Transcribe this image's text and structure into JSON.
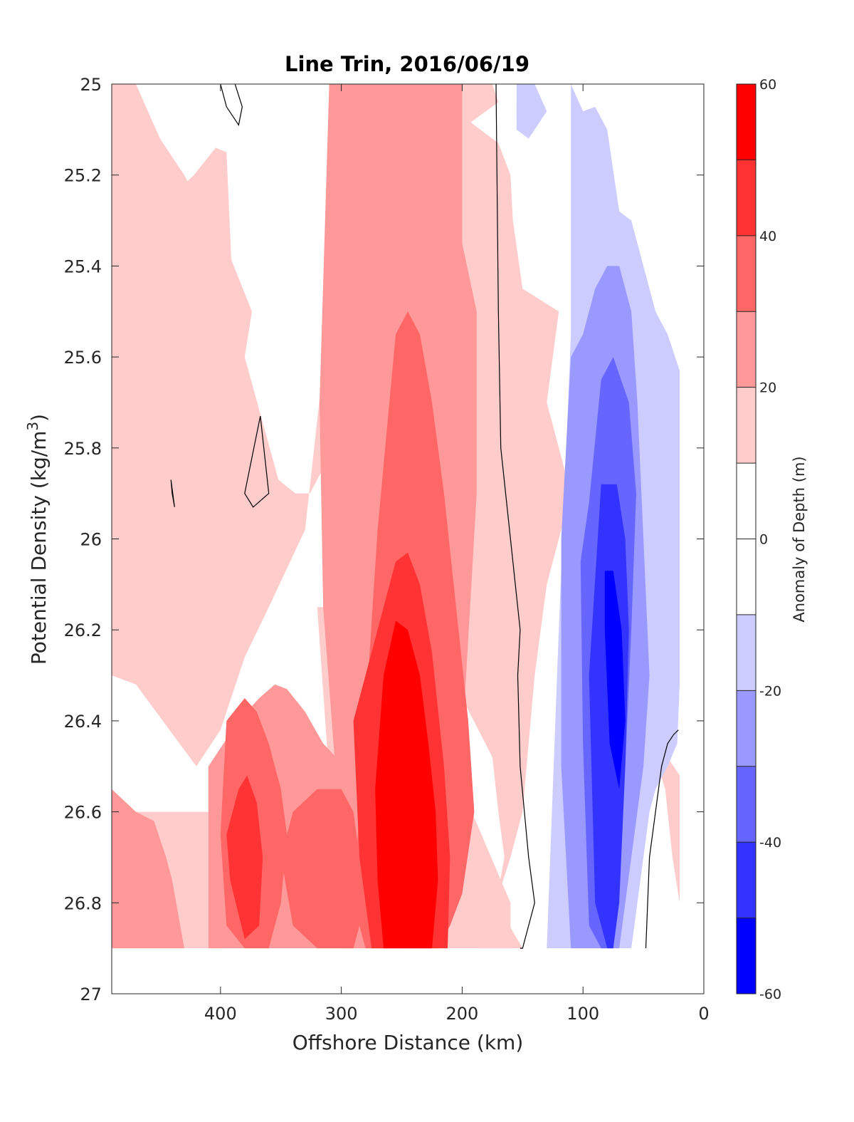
{
  "chart_data": {
    "type": "contour",
    "title": "Line Trin, 2016/06/19",
    "xlabel": "Offshore Distance (km)",
    "ylabel_main": "Potential Density (kg/m",
    "ylabel_sup": "3",
    "ylabel_close": ")",
    "xlim": [
      490,
      0
    ],
    "x_reversed": true,
    "ylim": [
      25,
      27
    ],
    "y_reversed": true,
    "x_ticks": [
      400,
      300,
      200,
      100,
      0
    ],
    "x_tick_labels": [
      "400",
      "300",
      "200",
      "100",
      "0"
    ],
    "y_ticks": [
      25,
      25.2,
      25.4,
      25.6,
      25.8,
      26,
      26.2,
      26.4,
      26.6,
      26.8,
      27
    ],
    "y_tick_labels": [
      "25",
      "25.2",
      "25.4",
      "25.6",
      "25.8",
      "26",
      "26.2",
      "26.4",
      "26.6",
      "26.8",
      "27"
    ],
    "colorbar": {
      "label": "Anomaly of Depth (m)",
      "range": [
        -60,
        60
      ],
      "ticks": [
        60,
        40,
        20,
        0,
        -20,
        -40,
        -60
      ],
      "tick_labels": [
        "60",
        "40",
        "20",
        "0",
        "-20",
        "-40",
        "-60"
      ],
      "levels": [
        -60,
        -50,
        -40,
        -30,
        -20,
        -10,
        0,
        10,
        20,
        30,
        40,
        50,
        60
      ],
      "colors": [
        "#0000ff",
        "#3333ff",
        "#6666ff",
        "#9999ff",
        "#ccccff",
        "#ffffff",
        "#ffffff",
        "#ffcccc",
        "#ff9999",
        "#ff6666",
        "#ff3333",
        "#ff0000"
      ]
    },
    "data_extent": {
      "x_min": 20,
      "x_max": 490,
      "y_min": 25,
      "y_max": 26.9
    },
    "regions": [
      {
        "band": "pink",
        "x": [
          490,
          470,
          450,
          430,
          418,
          410,
          392,
          374,
          380,
          352,
          338,
          326,
          316,
          290,
          244,
          224,
          196,
          170,
          175,
          205,
          205,
          245,
          258,
          245,
          260,
          265,
          270,
          200,
          175,
          170,
          165,
          172,
          150,
          160,
          190,
          184,
          172,
          160,
          150,
          145,
          140,
          130,
          110,
          130,
          120,
          150,
          158,
          160,
          170,
          205,
          205,
          220,
          255,
          280,
          300,
          310,
          330,
          360,
          380,
          400,
          420,
          470,
          490
        ],
        "y": [
          25,
          25,
          25.12,
          25.2,
          25.26,
          25.35,
          25.38,
          25.5,
          25.6,
          25.87,
          25.9,
          25.9,
          25.85,
          25.6,
          25.2,
          25.13,
          25.09,
          25.04,
          25,
          25,
          25.06,
          25.22,
          25.3,
          25.45,
          25.75,
          25.95,
          26.2,
          26.35,
          26.48,
          26.6,
          26.7,
          26.8,
          26.9,
          26.9,
          26.9,
          26.9,
          26.8,
          26.7,
          26.6,
          26.45,
          26.3,
          26.1,
          25.9,
          25.7,
          25.5,
          25.45,
          25.3,
          25.2,
          25.13,
          25.06,
          25,
          25,
          25.08,
          25.15,
          25.22,
          25.5,
          25.98,
          26.15,
          26.26,
          26.42,
          26.5,
          26.32,
          26.3
        ]
      },
      {
        "band": "pink",
        "x": [
          430,
          422,
          404,
          395,
          390,
          395,
          404,
          422
        ],
        "y": [
          25.22,
          25.2,
          25.14,
          25.15,
          25.45,
          25.56,
          25.74,
          25.52
        ]
      },
      {
        "band": "pink",
        "x": [
          470,
          395,
          395,
          490,
          490,
          475
        ],
        "y": [
          26.6,
          26.6,
          26.9,
          26.9,
          26.85,
          26.6
        ]
      },
      {
        "band": "pink",
        "x": [
          320,
          250,
          240,
          210,
          200,
          160,
          160,
          220,
          240,
          255,
          270,
          300
        ],
        "y": [
          26.15,
          26.15,
          26.3,
          26.45,
          26.55,
          26.8,
          26.9,
          26.9,
          26.9,
          26.9,
          26.9,
          26.9
        ]
      },
      {
        "band": "pink",
        "x": [
          42,
          38,
          32,
          26,
          20,
          20,
          30,
          42
        ],
        "y": [
          26.5,
          26.5,
          26.55,
          26.7,
          26.8,
          26.52,
          26.48,
          26.5
        ]
      },
      {
        "band": "salmon",
        "x": [
          310,
          200,
          200,
          188,
          188,
          200,
          224,
          235,
          250,
          270,
          290,
          305,
          315,
          318
        ],
        "y": [
          25,
          25,
          25.35,
          25.5,
          25.9,
          26.45,
          26.6,
          26.8,
          26.9,
          26.9,
          26.75,
          26.5,
          26.15,
          25.7
        ]
      },
      {
        "band": "salmon",
        "x": [
          490,
          470,
          455,
          445,
          440,
          430,
          440,
          470,
          490
        ],
        "y": [
          26.55,
          26.6,
          26.62,
          26.7,
          26.75,
          26.9,
          26.9,
          26.9,
          26.9
        ]
      },
      {
        "band": "salmon",
        "x": [
          410,
          385,
          368,
          355,
          345,
          330,
          315,
          290,
          260,
          230,
          230,
          260,
          290,
          330,
          360,
          380,
          400,
          410
        ],
        "y": [
          26.5,
          26.4,
          26.35,
          26.32,
          26.33,
          26.38,
          26.45,
          26.52,
          26.55,
          26.6,
          26.9,
          26.9,
          26.9,
          26.9,
          26.9,
          26.9,
          26.9,
          26.9
        ]
      },
      {
        "band": "red",
        "x": [
          270,
          255,
          245,
          235,
          225,
          215,
          205,
          195,
          190,
          200,
          210,
          220,
          235,
          250,
          265,
          280,
          290
        ],
        "y": [
          25.98,
          25.55,
          25.5,
          25.55,
          25.7,
          25.9,
          26.15,
          26.4,
          26.6,
          26.78,
          26.85,
          26.9,
          26.9,
          26.9,
          26.9,
          26.9,
          26.8
        ]
      },
      {
        "band": "red",
        "x": [
          395,
          380,
          370,
          360,
          350,
          345,
          350,
          360,
          370,
          380,
          395,
          400
        ],
        "y": [
          26.4,
          26.35,
          26.38,
          26.45,
          26.55,
          26.65,
          26.8,
          26.9,
          26.9,
          26.9,
          26.85,
          26.65
        ]
      },
      {
        "band": "red",
        "x": [
          320,
          300,
          290,
          280,
          290,
          320,
          340,
          350,
          340
        ],
        "y": [
          26.55,
          26.55,
          26.6,
          26.8,
          26.9,
          26.9,
          26.85,
          26.7,
          26.6
        ]
      },
      {
        "band": "crimson",
        "x": [
          265,
          255,
          245,
          235,
          225,
          215,
          210,
          212,
          225,
          240,
          260,
          275,
          285,
          290
        ],
        "y": [
          26.15,
          26.05,
          26.03,
          26.1,
          26.25,
          26.5,
          26.7,
          26.9,
          26.9,
          26.9,
          26.9,
          26.9,
          26.7,
          26.4
        ]
      },
      {
        "band": "crimson",
        "x": [
          385,
          378,
          370,
          365,
          368,
          380,
          392,
          395
        ],
        "y": [
          26.55,
          26.52,
          26.58,
          26.7,
          26.85,
          26.88,
          26.75,
          26.65
        ]
      },
      {
        "band": "scarlet",
        "x": [
          265,
          255,
          245,
          235,
          228,
          222,
          220,
          225,
          240,
          255,
          265,
          270,
          272
        ],
        "y": [
          26.3,
          26.18,
          26.2,
          26.3,
          26.45,
          26.6,
          26.75,
          26.9,
          26.9,
          26.9,
          26.9,
          26.75,
          26.55
        ]
      },
      {
        "band": "lav",
        "x": [
          110,
          100,
          90,
          80,
          70,
          60,
          50,
          40,
          30,
          20,
          20,
          22,
          30,
          40,
          45,
          50,
          55,
          60,
          70,
          80,
          90,
          100,
          110,
          120,
          130,
          120,
          110
        ],
        "y": [
          25,
          25.06,
          25.05,
          25.1,
          25.28,
          25.3,
          25.4,
          25.5,
          25.55,
          25.63,
          26.32,
          26.45,
          26.5,
          26.55,
          26.6,
          26.7,
          26.8,
          26.9,
          26.9,
          26.9,
          26.9,
          26.9,
          26.9,
          26.9,
          26.9,
          26.2,
          25.55
        ]
      },
      {
        "band": "lav",
        "x": [
          155,
          140,
          130,
          145,
          155
        ],
        "y": [
          25,
          25,
          25.06,
          25.12,
          25.1
        ]
      },
      {
        "band": "periwinkle",
        "x": [
          110,
          100,
          90,
          80,
          70,
          60,
          55,
          50,
          45,
          50,
          60,
          70,
          80,
          90,
          100,
          110,
          118,
          118
        ],
        "y": [
          25.6,
          25.55,
          25.45,
          25.4,
          25.4,
          25.5,
          25.7,
          26.0,
          26.3,
          26.5,
          26.7,
          26.9,
          26.9,
          26.9,
          26.9,
          26.9,
          26.5,
          26.0
        ]
      },
      {
        "band": "violet",
        "x": [
          95,
          85,
          75,
          62,
          56,
          60,
          65,
          70,
          75,
          85,
          95,
          100,
          102
        ],
        "y": [
          25.92,
          25.65,
          25.6,
          25.7,
          25.9,
          26.2,
          26.5,
          26.7,
          26.9,
          26.9,
          26.85,
          26.45,
          26.05
        ]
      },
      {
        "band": "blue2",
        "x": [
          85,
          72,
          65,
          62,
          65,
          70,
          75,
          80,
          90,
          95
        ],
        "y": [
          25.88,
          25.88,
          26.0,
          26.2,
          26.5,
          26.8,
          26.9,
          26.9,
          26.8,
          26.3
        ]
      },
      {
        "band": "blue1",
        "x": [
          82,
          75,
          68,
          65,
          70,
          78,
          82
        ],
        "y": [
          26.07,
          26.07,
          26.2,
          26.4,
          26.55,
          26.45,
          26.2
        ]
      }
    ],
    "zero_contours": [
      {
        "x": [
          172,
          170,
          168,
          160,
          152,
          154,
          152,
          145,
          140,
          150,
          152
        ],
        "y": [
          25,
          25.5,
          25.8,
          26.0,
          26.2,
          26.3,
          26.5,
          26.7,
          26.8,
          26.9,
          26.9
        ]
      },
      {
        "x": [
          48,
          45,
          40,
          35,
          30,
          25,
          21
        ],
        "y": [
          26.9,
          26.7,
          26.6,
          26.5,
          26.45,
          26.43,
          26.42
        ]
      },
      {
        "x": [
          400,
          395,
          385,
          382,
          388
        ],
        "y": [
          25,
          25.05,
          25.09,
          25.05,
          25
        ]
      },
      {
        "x": [
          367,
          360,
          373,
          380,
          367
        ],
        "y": [
          25.73,
          25.9,
          25.93,
          25.9,
          25.73
        ]
      },
      {
        "x": [
          441,
          440,
          438,
          441
        ],
        "y": [
          25.87,
          25.9,
          25.93,
          25.87
        ]
      }
    ]
  }
}
